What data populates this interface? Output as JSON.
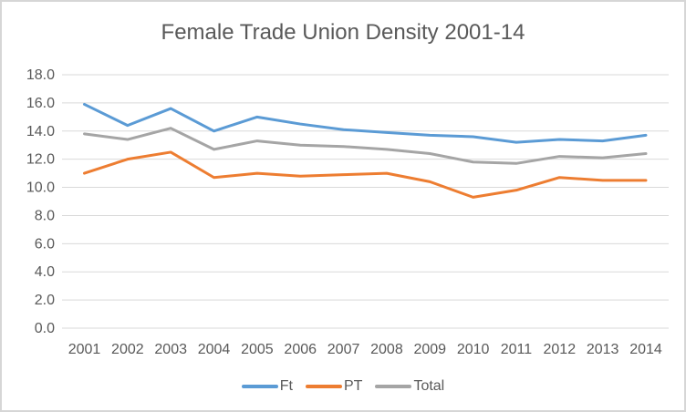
{
  "window": {
    "background": "#ffffff",
    "border_color": "#d6d6d6"
  },
  "chart_data": {
    "type": "line",
    "title": "Female Trade Union Density 2001-14",
    "categories": [
      "2001",
      "2002",
      "2003",
      "2004",
      "2005",
      "2006",
      "2007",
      "2008",
      "2009",
      "2010",
      "2011",
      "2012",
      "2013",
      "2014"
    ],
    "series": [
      {
        "name": "Ft",
        "color": "#5B9BD5",
        "values": [
          15.9,
          14.4,
          15.6,
          14.0,
          15.0,
          14.5,
          14.1,
          13.9,
          13.7,
          13.6,
          13.2,
          13.4,
          13.3,
          13.7
        ]
      },
      {
        "name": "PT",
        "color": "#ED7D31",
        "values": [
          11.0,
          12.0,
          12.5,
          10.7,
          11.0,
          10.8,
          10.9,
          11.0,
          10.4,
          9.3,
          9.8,
          10.7,
          10.5,
          10.5
        ]
      },
      {
        "name": "Total",
        "color": "#A5A5A5",
        "values": [
          13.8,
          13.4,
          14.2,
          12.7,
          13.3,
          13.0,
          12.9,
          12.7,
          12.4,
          11.8,
          11.7,
          12.2,
          12.1,
          12.4
        ]
      }
    ],
    "xlabel": "",
    "ylabel": "",
    "ylim": [
      0,
      18
    ],
    "ytick_step": 2,
    "ytick_labels": [
      "0.0",
      "2.0",
      "4.0",
      "6.0",
      "8.0",
      "10.0",
      "12.0",
      "14.0",
      "16.0",
      "18.0"
    ],
    "grid": true,
    "gridline_color": "#d9d9d9",
    "text_color": "#595959",
    "legend_position": "bottom",
    "legend_labels": [
      "Ft",
      "PT",
      "Total"
    ]
  }
}
